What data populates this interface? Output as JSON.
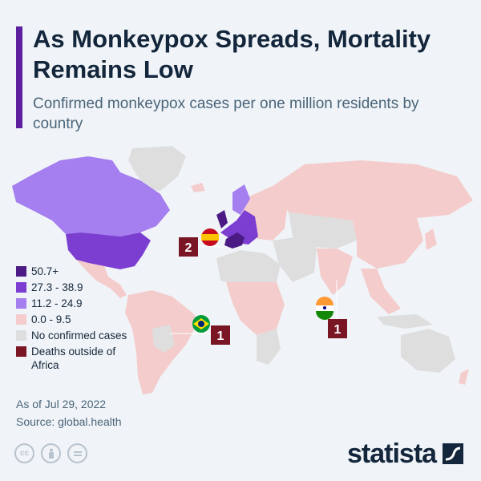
{
  "title": "As Monkeypox Spreads, Mortality Remains Low",
  "subtitle": "Confirmed monkeypox cases per one million residents by country",
  "legend": [
    {
      "label": "50.7+",
      "color": "#4b1a84"
    },
    {
      "label": "27.3 - 38.9",
      "color": "#7b3ed1"
    },
    {
      "label": "11.2 - 24.9",
      "color": "#a57ef0"
    },
    {
      "label": "0.0 - 9.5",
      "color": "#f4cccc"
    },
    {
      "label": "No confirmed cases",
      "color": "#dedede"
    },
    {
      "label": "Deaths outside of Africa",
      "color": "#7a1524"
    }
  ],
  "deaths": [
    {
      "country_flag": "spain-flag-icon",
      "count": "2"
    },
    {
      "country_flag": "brazil-flag-icon",
      "count": "1"
    },
    {
      "country_flag": "india-flag-icon",
      "count": "1"
    }
  ],
  "footer": {
    "date": "As of Jul 29, 2022",
    "source": "Source: global.health"
  },
  "license_icons": [
    "cc-icon",
    "attribution-icon",
    "noderivs-icon"
  ],
  "brand": "statista"
}
